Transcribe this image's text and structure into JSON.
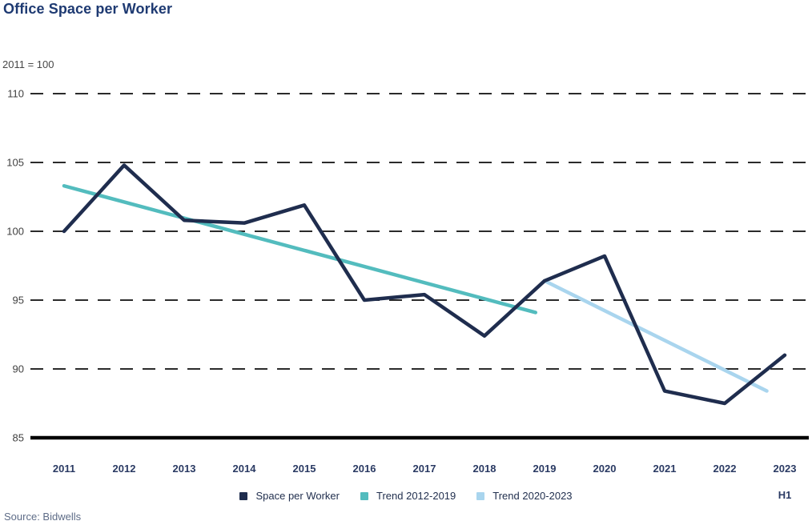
{
  "title": "Office Space per Worker",
  "subtitle": "2011 = 100",
  "source": "Source: Bidwells",
  "colors": {
    "series_navy": "#1f2d4e",
    "trend_teal": "#53bcbe",
    "trend_lightblue": "#a9d5ee",
    "title_text": "#1e3a72",
    "year_labels": "#2a3a63",
    "tick_labels": "#404040",
    "gridline": "#2b2b2b",
    "baseline": "#000000",
    "legend_text": "#22304f",
    "source_text": "#5e6c87"
  },
  "chart_data": {
    "type": "line",
    "title": "Office Space per Worker",
    "subtitle": "2011 = 100",
    "ylim": [
      85,
      110
    ],
    "y_ticks": [
      110,
      105,
      100,
      95,
      90,
      85
    ],
    "gridlines_dashed": [
      110,
      105,
      100,
      95,
      90
    ],
    "baseline_value": 85,
    "grid_on": true,
    "legend_position": "bottom-center",
    "x_labels": [
      "2011",
      "2012",
      "2013",
      "2014",
      "2015",
      "2016",
      "2017",
      "2018",
      "2019",
      "2020",
      "2021",
      "2022",
      "2023"
    ],
    "x_sub_label": "H1",
    "series": [
      {
        "name": "Space per Worker",
        "color_key": "series_navy",
        "years": [
          2011,
          2012,
          2013,
          2014,
          2015,
          2016,
          2017,
          2018,
          2019,
          2020,
          2021,
          2022,
          2023
        ],
        "values": [
          100.0,
          104.8,
          100.8,
          100.6,
          101.9,
          95.0,
          95.4,
          92.4,
          96.4,
          98.2,
          88.4,
          87.5,
          91.0
        ]
      },
      {
        "name": "Trend 2012-2019",
        "color_key": "trend_teal",
        "trend": true,
        "points": [
          {
            "year": 2011.0,
            "value": 103.3
          },
          {
            "year": 2018.85,
            "value": 94.1
          }
        ]
      },
      {
        "name": "Trend 2020-2023",
        "color_key": "trend_lightblue",
        "trend": true,
        "points": [
          {
            "year": 2019.0,
            "value": 96.4
          },
          {
            "year": 2022.7,
            "value": 88.4
          }
        ]
      }
    ]
  },
  "legend": {
    "items": [
      {
        "label": "Space per Worker",
        "color_key": "series_navy"
      },
      {
        "label": "Trend 2012-2019",
        "color_key": "trend_teal"
      },
      {
        "label": "Trend 2020-2023",
        "color_key": "trend_lightblue"
      }
    ]
  }
}
